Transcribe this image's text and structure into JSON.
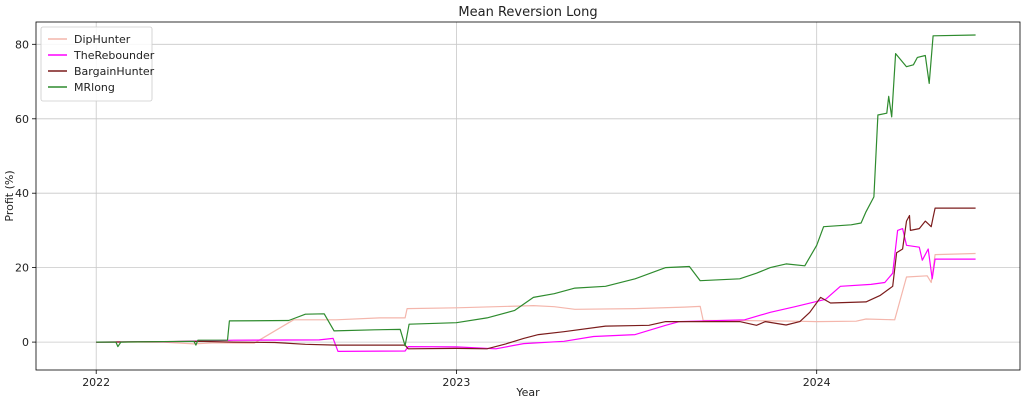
{
  "chart_data": {
    "type": "line",
    "title": "Mean Reversion Long",
    "xlabel": "Year",
    "ylabel": "Profit (%)",
    "xlim": [
      "2021-11-01",
      "2024-07-25"
    ],
    "ylim": [
      -7.5,
      86
    ],
    "xticks": [
      {
        "label": "2022",
        "date": "2022-01-01"
      },
      {
        "label": "2023",
        "date": "2023-01-01"
      },
      {
        "label": "2024",
        "date": "2024-01-01"
      }
    ],
    "yticks": [
      0,
      20,
      40,
      60,
      80
    ],
    "grid": true,
    "legend_position": "upper-left",
    "series": [
      {
        "name": "DipHunter",
        "color": "#f4b6ac",
        "points": [
          [
            "2022-01-01",
            0
          ],
          [
            "2022-03-10",
            0
          ],
          [
            "2022-04-10",
            -0.5
          ],
          [
            "2022-05-01",
            -0.2
          ],
          [
            "2022-06-10",
            -0.3
          ],
          [
            "2022-07-20",
            6.0
          ],
          [
            "2022-09-01",
            6.0
          ],
          [
            "2022-10-15",
            6.5
          ],
          [
            "2022-11-10",
            6.5
          ],
          [
            "2022-11-12",
            9.0
          ],
          [
            "2023-01-01",
            9.2
          ],
          [
            "2023-02-10",
            9.5
          ],
          [
            "2023-03-20",
            9.8
          ],
          [
            "2023-04-10",
            9.5
          ],
          [
            "2023-05-01",
            8.8
          ],
          [
            "2023-07-01",
            9.0
          ],
          [
            "2023-08-20",
            9.4
          ],
          [
            "2023-09-05",
            9.6
          ],
          [
            "2023-09-08",
            5.8
          ],
          [
            "2023-10-15",
            5.8
          ],
          [
            "2023-12-10",
            5.6
          ],
          [
            "2024-01-01",
            5.5
          ],
          [
            "2024-02-10",
            5.6
          ],
          [
            "2024-02-20",
            6.2
          ],
          [
            "2024-03-20",
            6.0
          ],
          [
            "2024-04-01",
            17.5
          ],
          [
            "2024-04-22",
            17.8
          ],
          [
            "2024-04-26",
            16.0
          ],
          [
            "2024-04-30",
            23.5
          ],
          [
            "2024-06-10",
            23.8
          ]
        ]
      },
      {
        "name": "TheRebounder",
        "color": "#ff00ff",
        "points": [
          [
            "2022-01-01",
            0
          ],
          [
            "2022-03-15",
            0.1
          ],
          [
            "2022-04-15",
            0.3
          ],
          [
            "2022-05-20",
            0.5
          ],
          [
            "2022-08-15",
            0.6
          ],
          [
            "2022-08-29",
            1.0
          ],
          [
            "2022-09-03",
            -2.5
          ],
          [
            "2022-11-10",
            -2.4
          ],
          [
            "2022-11-13",
            -1.2
          ],
          [
            "2023-01-01",
            -1.3
          ],
          [
            "2023-02-10",
            -1.8
          ],
          [
            "2023-03-10",
            -0.4
          ],
          [
            "2023-04-20",
            0.2
          ],
          [
            "2023-05-20",
            1.5
          ],
          [
            "2023-07-01",
            2.0
          ],
          [
            "2023-08-01",
            4.5
          ],
          [
            "2023-08-15",
            5.5
          ],
          [
            "2023-10-20",
            6.0
          ],
          [
            "2023-11-15",
            8.0
          ],
          [
            "2023-12-10",
            9.5
          ],
          [
            "2024-01-10",
            11.5
          ],
          [
            "2024-01-25",
            15.0
          ],
          [
            "2024-02-25",
            15.5
          ],
          [
            "2024-03-10",
            16.0
          ],
          [
            "2024-03-18",
            18.5
          ],
          [
            "2024-03-23",
            30.0
          ],
          [
            "2024-03-28",
            30.5
          ],
          [
            "2024-04-01",
            26.0
          ],
          [
            "2024-04-14",
            25.5
          ],
          [
            "2024-04-17",
            22.0
          ],
          [
            "2024-04-23",
            25.0
          ],
          [
            "2024-04-27",
            17.0
          ],
          [
            "2024-04-30",
            22.3
          ],
          [
            "2024-06-10",
            22.3
          ]
        ]
      },
      {
        "name": "BargainHunter",
        "color": "#7b1c1c",
        "points": [
          [
            "2022-01-01",
            0
          ],
          [
            "2022-04-15",
            0.2
          ],
          [
            "2022-05-20",
            0
          ],
          [
            "2022-07-01",
            -0.1
          ],
          [
            "2022-08-01",
            -0.6
          ],
          [
            "2022-09-01",
            -0.8
          ],
          [
            "2022-11-10",
            -0.8
          ],
          [
            "2022-11-13",
            -1.8
          ],
          [
            "2023-01-01",
            -1.7
          ],
          [
            "2023-02-01",
            -1.8
          ],
          [
            "2023-02-20",
            -0.5
          ],
          [
            "2023-03-10",
            1.0
          ],
          [
            "2023-03-25",
            2.0
          ],
          [
            "2023-04-20",
            2.8
          ],
          [
            "2023-06-01",
            4.3
          ],
          [
            "2023-07-15",
            4.5
          ],
          [
            "2023-08-01",
            5.5
          ],
          [
            "2023-10-15",
            5.5
          ],
          [
            "2023-11-01",
            4.5
          ],
          [
            "2023-11-10",
            5.5
          ],
          [
            "2023-12-01",
            4.6
          ],
          [
            "2023-12-15",
            5.5
          ],
          [
            "2023-12-25",
            8.0
          ],
          [
            "2024-01-05",
            12.0
          ],
          [
            "2024-01-15",
            10.5
          ],
          [
            "2024-02-20",
            10.8
          ],
          [
            "2024-03-05",
            12.5
          ],
          [
            "2024-03-18",
            15.0
          ],
          [
            "2024-03-22",
            24.0
          ],
          [
            "2024-03-28",
            25.0
          ],
          [
            "2024-04-01",
            32.5
          ],
          [
            "2024-04-04",
            34.0
          ],
          [
            "2024-04-05",
            30.0
          ],
          [
            "2024-04-14",
            30.5
          ],
          [
            "2024-04-20",
            32.5
          ],
          [
            "2024-04-26",
            31.0
          ],
          [
            "2024-04-28",
            33.5
          ],
          [
            "2024-04-30",
            36.0
          ],
          [
            "2024-06-10",
            36.0
          ]
        ]
      },
      {
        "name": "MRlong",
        "color": "#2e8b2e",
        "points": [
          [
            "2022-01-01",
            0
          ],
          [
            "2022-01-21",
            0
          ],
          [
            "2022-01-23",
            -1.2
          ],
          [
            "2022-01-26",
            0
          ],
          [
            "2022-04-10",
            0.2
          ],
          [
            "2022-04-12",
            -0.8
          ],
          [
            "2022-04-14",
            0.5
          ],
          [
            "2022-05-14",
            0.5
          ],
          [
            "2022-05-16",
            5.7
          ],
          [
            "2022-07-15",
            5.8
          ],
          [
            "2022-08-01",
            7.5
          ],
          [
            "2022-08-20",
            7.6
          ],
          [
            "2022-08-30",
            3.0
          ],
          [
            "2022-10-10",
            3.3
          ],
          [
            "2022-11-05",
            3.4
          ],
          [
            "2022-11-10",
            -1.0
          ],
          [
            "2022-11-14",
            4.8
          ],
          [
            "2023-01-01",
            5.2
          ],
          [
            "2023-02-01",
            6.5
          ],
          [
            "2023-03-01",
            8.5
          ],
          [
            "2023-03-20",
            12.0
          ],
          [
            "2023-04-10",
            13.0
          ],
          [
            "2023-05-01",
            14.5
          ],
          [
            "2023-06-01",
            15.0
          ],
          [
            "2023-07-01",
            17.0
          ],
          [
            "2023-08-01",
            20.0
          ],
          [
            "2023-08-25",
            20.3
          ],
          [
            "2023-09-05",
            16.5
          ],
          [
            "2023-10-15",
            17.0
          ],
          [
            "2023-11-01",
            18.5
          ],
          [
            "2023-11-15",
            20.0
          ],
          [
            "2023-12-01",
            21.0
          ],
          [
            "2023-12-20",
            20.5
          ],
          [
            "2024-01-01",
            26.0
          ],
          [
            "2024-01-08",
            31.0
          ],
          [
            "2024-02-05",
            31.5
          ],
          [
            "2024-02-15",
            32.0
          ],
          [
            "2024-02-20",
            35.0
          ],
          [
            "2024-02-28",
            39.0
          ],
          [
            "2024-03-03",
            61.0
          ],
          [
            "2024-03-12",
            61.5
          ],
          [
            "2024-03-14",
            66.0
          ],
          [
            "2024-03-17",
            60.5
          ],
          [
            "2024-03-21",
            77.5
          ],
          [
            "2024-04-01",
            74.0
          ],
          [
            "2024-04-08",
            74.5
          ],
          [
            "2024-04-12",
            76.5
          ],
          [
            "2024-04-20",
            77.0
          ],
          [
            "2024-04-24",
            69.5
          ],
          [
            "2024-04-28",
            82.3
          ],
          [
            "2024-06-10",
            82.5
          ]
        ]
      }
    ]
  }
}
